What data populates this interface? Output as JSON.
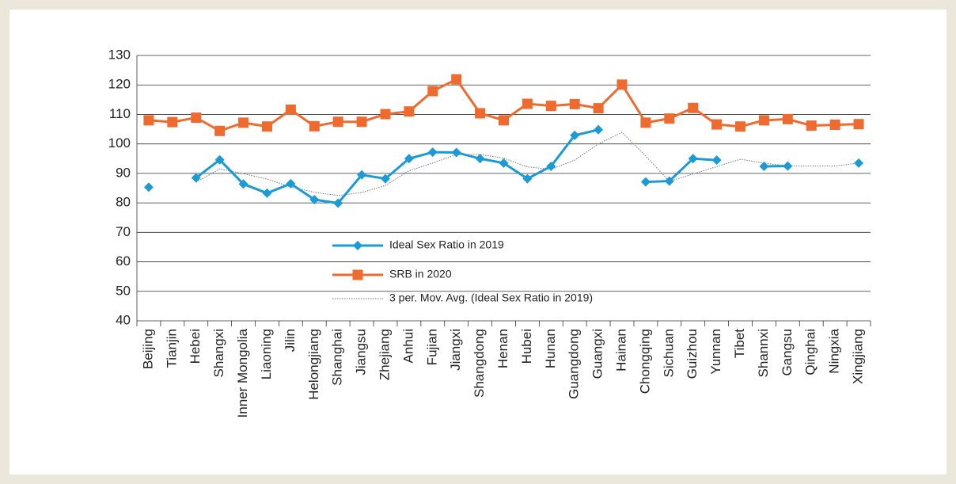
{
  "chart_data": {
    "type": "line",
    "categories": [
      "Beijing",
      "Tianjin",
      "Hebei",
      "Shangxi",
      "Inner Mongolia",
      "Liaoning",
      "Jilin",
      "Helongjiang",
      "Shanghai",
      "Jiangsu",
      "Zhejiang",
      "Anhui",
      "Fujian",
      "Jiangxi",
      "Shangdong",
      "Henan",
      "Hubei",
      "Hunan",
      "Guangdong",
      "Guangxi",
      "Hainan",
      "Chongqing",
      "Sichuan",
      "Guizhou",
      "Yunnan",
      "Tibet",
      "Shannxi",
      "Gangsu",
      "Qinghai",
      "Ningxia",
      "Xingjiang"
    ],
    "series": [
      {
        "name": "Ideal Sex Ratio in 2019",
        "color": "#1b9ad6",
        "marker": "diamond",
        "values": [
          85.3,
          null,
          88.5,
          94.6,
          86.4,
          83.3,
          86.5,
          81.1,
          79.9,
          89.5,
          88.2,
          95.0,
          97.2,
          97.1,
          95.0,
          93.5,
          88.2,
          92.4,
          102.9,
          104.8,
          null,
          87.1,
          87.4,
          95.0,
          94.5,
          null,
          92.4,
          92.5,
          null,
          null,
          93.5
        ]
      },
      {
        "name": "SRB in 2020",
        "color": "#ef6a2e",
        "marker": "square",
        "values": [
          108.0,
          107.4,
          108.9,
          104.4,
          107.2,
          105.9,
          111.6,
          106.0,
          107.5,
          107.5,
          110.1,
          111.0,
          117.9,
          121.9,
          110.4,
          108.0,
          113.6,
          112.9,
          113.5,
          112.1,
          120.1,
          107.2,
          108.6,
          112.2,
          106.6,
          105.9,
          108.0,
          108.4,
          106.2,
          106.5,
          106.7
        ]
      },
      {
        "name": "3 per. Mov. Avg. (Ideal Sex Ratio in 2019)",
        "color": "#777777",
        "marker": "none",
        "values": [
          null,
          null,
          87.0,
          91.5,
          89.9,
          88.1,
          85.4,
          83.6,
          82.5,
          83.5,
          85.9,
          90.9,
          93.5,
          96.4,
          96.4,
          95.2,
          92.2,
          91.4,
          94.5,
          100.0,
          103.9,
          95.9,
          87.3,
          89.8,
          92.3,
          94.8,
          93.5,
          92.5,
          92.5,
          92.5,
          93.5
        ]
      }
    ],
    "ylim": [
      40,
      130
    ],
    "yticks": [
      40,
      50,
      60,
      70,
      80,
      90,
      100,
      110,
      120,
      130
    ],
    "grid": true
  }
}
